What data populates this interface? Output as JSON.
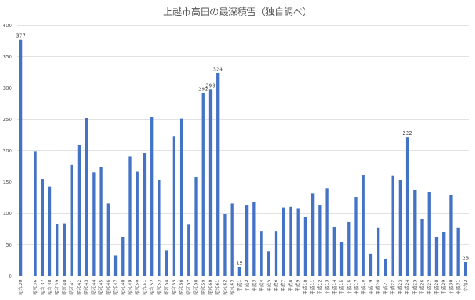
{
  "chart_data": {
    "type": "bar",
    "title": "上越市高田の最深積雪（独自調べ）",
    "xlabel": "",
    "ylabel": "",
    "ylim": [
      0,
      400
    ],
    "yticks": [
      0,
      50,
      100,
      150,
      200,
      250,
      300,
      350,
      400
    ],
    "grid": true,
    "legend": "none",
    "bar_color": "#4472c4",
    "categories": [
      "昭和20",
      "",
      "昭和36",
      "昭和37",
      "昭和38",
      "昭和39",
      "昭和40",
      "昭和41",
      "昭和42",
      "昭和43",
      "昭和44",
      "昭和45",
      "昭和46",
      "昭和47",
      "昭和48",
      "昭和49",
      "昭和50",
      "昭和51",
      "昭和52",
      "昭和53",
      "昭和54",
      "昭和55",
      "昭和56",
      "昭和57",
      "昭和58",
      "昭和59",
      "昭和60",
      "昭和61",
      "昭和62",
      "昭和63",
      "平成1",
      "平成2",
      "平成3",
      "平成4",
      "平成5",
      "平成6",
      "平成7",
      "平成8",
      "平成9",
      "平成10",
      "平成11",
      "平成12",
      "平成13",
      "平成14",
      "平成15",
      "平成16",
      "平成17",
      "平成18",
      "平成19",
      "平成20",
      "平成21",
      "平成22",
      "平成23",
      "平成24",
      "平成25",
      "平成26",
      "平成27",
      "平成28",
      "平成29",
      "平成30",
      "平成31",
      "令和2"
    ],
    "values": [
      377,
      null,
      199,
      155,
      143,
      83,
      84,
      178,
      209,
      252,
      165,
      174,
      116,
      33,
      62,
      191,
      167,
      196,
      254,
      153,
      41,
      223,
      251,
      82,
      158,
      292,
      298,
      324,
      99,
      116,
      15,
      113,
      118,
      72,
      40,
      72,
      109,
      111,
      108,
      94,
      132,
      113,
      140,
      79,
      54,
      87,
      126,
      161,
      36,
      77,
      27,
      160,
      153,
      222,
      138,
      91,
      134,
      62,
      71,
      129,
      77,
      23
    ],
    "data_labels": [
      {
        "index": 0,
        "text": "377"
      },
      {
        "index": 25,
        "text": "292"
      },
      {
        "index": 26,
        "text": "298"
      },
      {
        "index": 27,
        "text": "324"
      },
      {
        "index": 30,
        "text": "15"
      },
      {
        "index": 53,
        "text": "222"
      },
      {
        "index": 61,
        "text": "23"
      }
    ]
  }
}
